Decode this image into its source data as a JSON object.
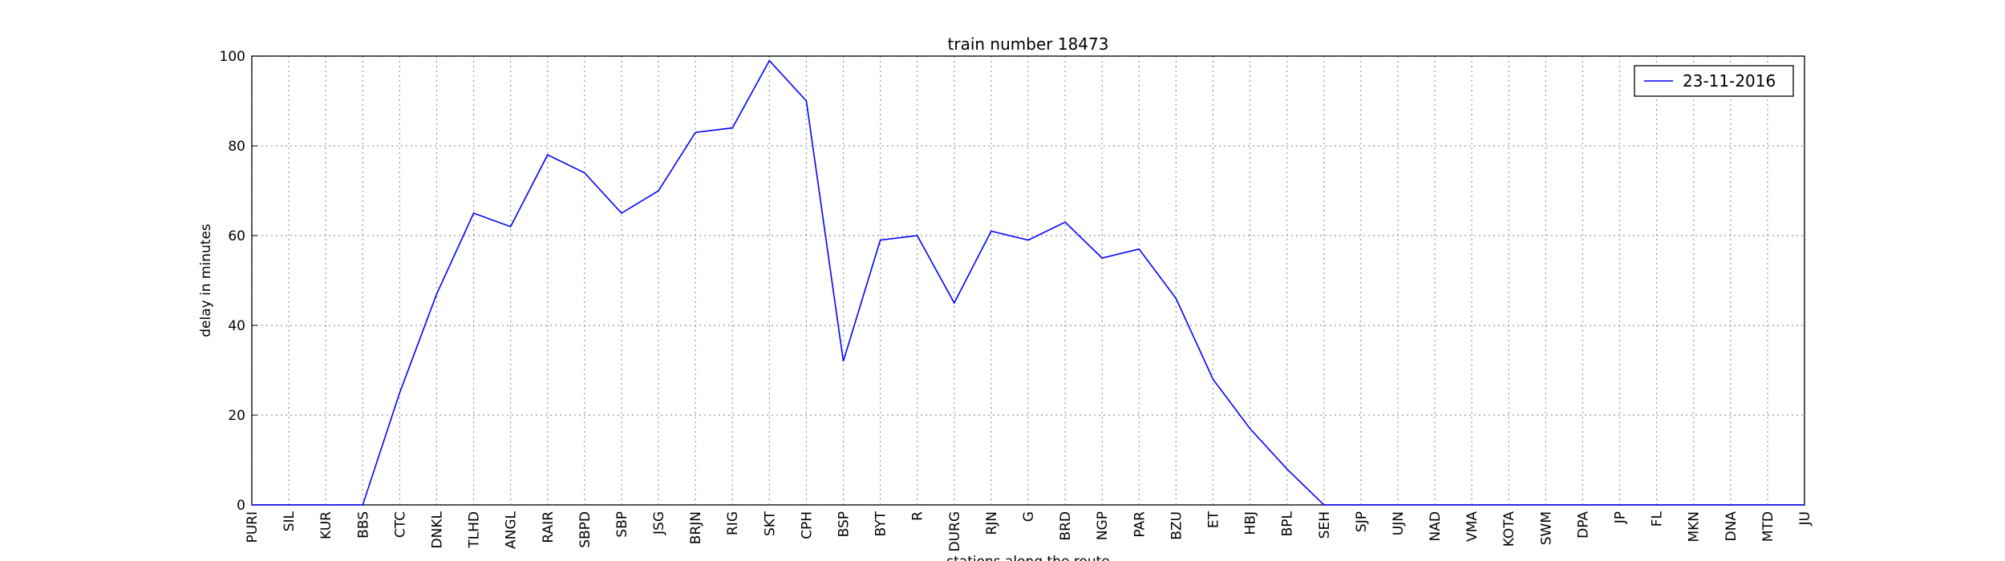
{
  "chart_data": {
    "type": "line",
    "title": "train number 18473",
    "x_label": "stations along the route",
    "y_label": "delay in minutes",
    "categories": [
      "PURI",
      "SIL",
      "KUR",
      "BBS",
      "CTC",
      "DNKL",
      "TLHD",
      "ANGL",
      "RAIR",
      "SBPD",
      "SBP",
      "JSG",
      "BRJN",
      "RIG",
      "SKT",
      "CPH",
      "BSP",
      "BYT",
      "R",
      "DURG",
      "RJN",
      "G",
      "BRD",
      "NGP",
      "PAR",
      "BZU",
      "ET",
      "HBJ",
      "BPL",
      "SEH",
      "SJP",
      "UJN",
      "NAD",
      "VMA",
      "KOTA",
      "SWM",
      "DPA",
      "JP",
      "FL",
      "MKN",
      "DNA",
      "MTD",
      "JU"
    ],
    "series": [
      {
        "name": "23-11-2016",
        "color": "#0000ff",
        "values": [
          0,
          0,
          0,
          0,
          25,
          47,
          65,
          62,
          78,
          74,
          65,
          70,
          83,
          84,
          99,
          90,
          32,
          59,
          60,
          45,
          61,
          59,
          63,
          55,
          57,
          46,
          28,
          17,
          8,
          0,
          0,
          0,
          0,
          0,
          0,
          0,
          0,
          0,
          0,
          0,
          0,
          0,
          0
        ]
      }
    ],
    "ylim": [
      0,
      100
    ],
    "yticks": [
      0,
      20,
      40,
      60,
      80,
      100
    ],
    "grid": true,
    "legend": "upper right"
  }
}
